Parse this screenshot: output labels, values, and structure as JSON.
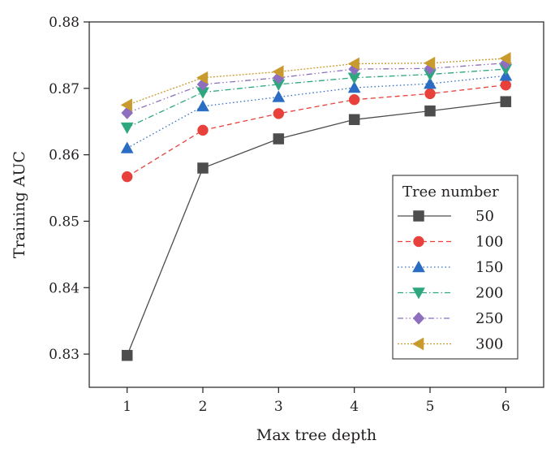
{
  "chart_data": {
    "type": "line",
    "xlabel": "Max tree depth",
    "ylabel": "Training AUC",
    "x": [
      1,
      2,
      3,
      4,
      5,
      6
    ],
    "x_ticks": [
      "1",
      "2",
      "3",
      "4",
      "5",
      "6"
    ],
    "xlim": [
      0.5,
      6.5
    ],
    "ylim": [
      0.825,
      0.88
    ],
    "y_ticks": [
      "0.83",
      "0.84",
      "0.85",
      "0.86",
      "0.87",
      "0.88"
    ],
    "y_tick_values": [
      0.83,
      0.84,
      0.85,
      0.86,
      0.87,
      0.88
    ],
    "grid": false,
    "legend": {
      "title": "Tree number",
      "placement": "bottom-right"
    },
    "series": [
      {
        "name": "50",
        "color": "#4d4d4d",
        "marker": "square",
        "dash": "solid",
        "values": [
          0.8298,
          0.858,
          0.8624,
          0.8653,
          0.8666,
          0.868
        ]
      },
      {
        "name": "100",
        "color": "#e8413c",
        "marker": "circle",
        "dash": "dashed",
        "values": [
          0.8567,
          0.8637,
          0.8662,
          0.8683,
          0.8692,
          0.8705
        ]
      },
      {
        "name": "150",
        "color": "#2b6cc4",
        "marker": "triangle-up",
        "dash": "dotted",
        "values": [
          0.861,
          0.8673,
          0.8687,
          0.8701,
          0.8707,
          0.8719
        ]
      },
      {
        "name": "200",
        "color": "#2fa77e",
        "marker": "triangle-down",
        "dash": "dashdot",
        "values": [
          0.8641,
          0.8694,
          0.8706,
          0.8716,
          0.8721,
          0.8729
        ]
      },
      {
        "name": "250",
        "color": "#8e6fbf",
        "marker": "diamond",
        "dash": "dashdotdot",
        "values": [
          0.8663,
          0.8706,
          0.8716,
          0.8729,
          0.873,
          0.8738
        ]
      },
      {
        "name": "300",
        "color": "#c99a2e",
        "marker": "triangle-left",
        "dash": "shortdot",
        "values": [
          0.8675,
          0.8716,
          0.8725,
          0.8737,
          0.8738,
          0.8745
        ]
      }
    ]
  }
}
